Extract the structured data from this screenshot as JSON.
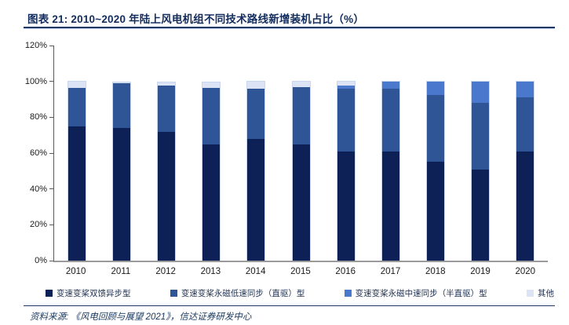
{
  "header": {
    "title": "图表 21:  2010~2020 年陆上风电机组不同技术路线新增装机占比（%）"
  },
  "chart_data": {
    "type": "bar",
    "stacked": true,
    "title": "2010~2020 年陆上风电机组不同技术路线新增装机占比（%）",
    "categories": [
      "2010",
      "2011",
      "2012",
      "2013",
      "2014",
      "2015",
      "2016",
      "2017",
      "2018",
      "2019",
      "2020"
    ],
    "series": [
      {
        "name": "变速变桨双馈异步型",
        "color": "#0d2156",
        "values": [
          75,
          74,
          72,
          65,
          68,
          65,
          61,
          61,
          55,
          51,
          61
        ]
      },
      {
        "name": "变速变桨永磁低速同步（直驱）型",
        "color": "#2f5596",
        "values": [
          21.5,
          25,
          25.5,
          31.5,
          28,
          32,
          35,
          35,
          37.5,
          37,
          30
        ]
      },
      {
        "name": "变速变桨永磁中速同步（半直驱）型",
        "color": "#4a78cc",
        "values": [
          0,
          0,
          0,
          0,
          0,
          0,
          1.5,
          4,
          7.5,
          12,
          9
        ]
      },
      {
        "name": "其他",
        "color": "#dbe3f5",
        "values": [
          3.5,
          0.5,
          2,
          3,
          4,
          3,
          2.5,
          0,
          0,
          0,
          0
        ]
      }
    ],
    "xlabel": "",
    "ylabel": "",
    "ylim": [
      0,
      120
    ],
    "ytick_step": 20,
    "ytick_labels": [
      "0%",
      "20%",
      "40%",
      "60%",
      "80%",
      "100%",
      "120%"
    ],
    "grid": false,
    "legend_position": "bottom"
  },
  "footer": {
    "source": "资料来源:  《风电回顾与展望 2021》，信达证券研发中心"
  }
}
